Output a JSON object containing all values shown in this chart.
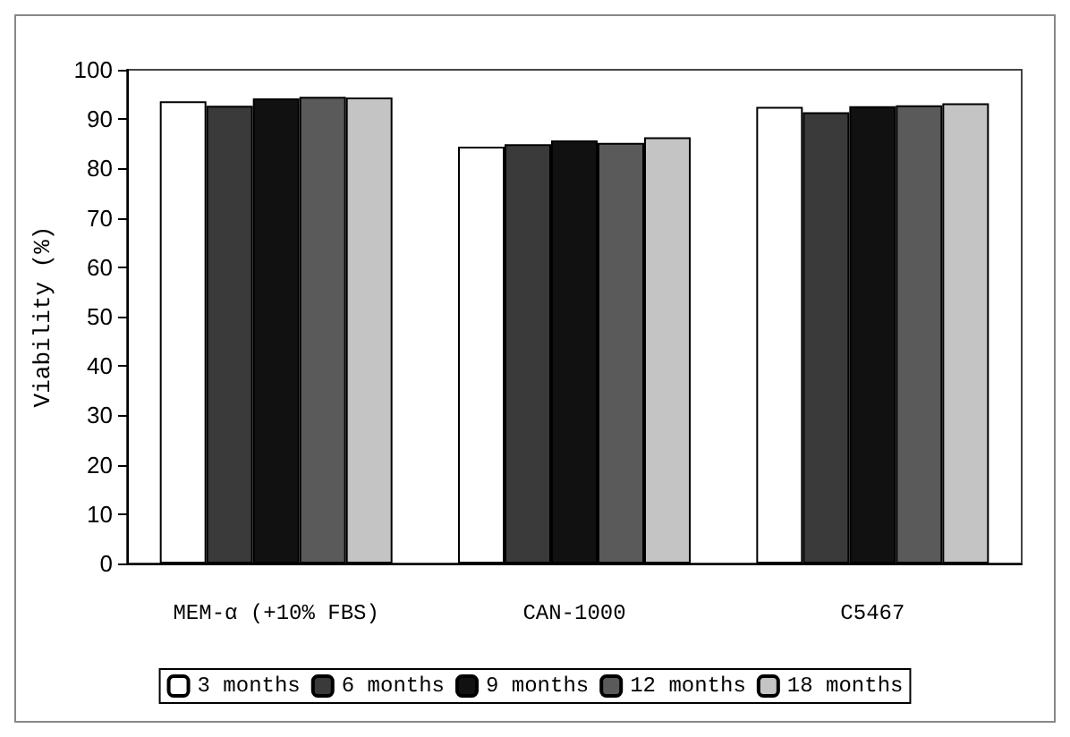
{
  "chart_data": {
    "type": "bar",
    "ylabel": "Viability (%)",
    "categories": [
      "MEM-α (+10% FBS)",
      "CAN-1000",
      "C5467"
    ],
    "series": [
      {
        "name": "3 months",
        "color": "#ffffff",
        "values": [
          93.6,
          84.4,
          92.5
        ]
      },
      {
        "name": "6 months",
        "color": "#3a3a3a",
        "values": [
          92.7,
          84.9,
          91.4
        ]
      },
      {
        "name": "9 months",
        "color": "#111111",
        "values": [
          94.2,
          85.7,
          92.6
        ]
      },
      {
        "name": "12 months",
        "color": "#5a5a5a",
        "values": [
          94.5,
          85.2,
          92.8
        ]
      },
      {
        "name": "18 months",
        "color": "#c4c4c4",
        "values": [
          94.4,
          86.3,
          93.2
        ]
      }
    ],
    "ylim": [
      0,
      100
    ],
    "yticks": [
      0,
      10,
      20,
      30,
      40,
      50,
      60,
      70,
      80,
      90,
      100
    ],
    "grid": false,
    "legend": "bottom"
  }
}
